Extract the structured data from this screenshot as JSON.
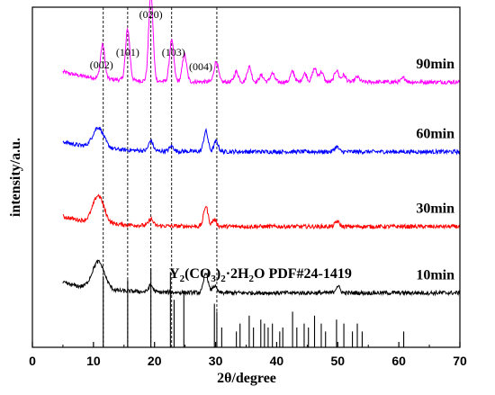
{
  "chart_data": {
    "type": "line",
    "xlabel_prefix": "2",
    "xlabel_symbol": "θ",
    "xlabel_suffix": "/degree",
    "ylabel": "intensity/a.u.",
    "xlim": [
      0,
      70
    ],
    "x_ticks": [
      "0",
      "10",
      "20",
      "30",
      "40",
      "50",
      "60",
      "70"
    ],
    "y_tick_labels_shown": false,
    "grid": false,
    "series": [
      {
        "name": "90min",
        "color": "#ff00ff",
        "baseline": 0.78,
        "peaks": [
          {
            "x": 11.5,
            "h": 0.1
          },
          {
            "x": 15.6,
            "h": 0.15
          },
          {
            "x": 19.4,
            "h": 0.26
          },
          {
            "x": 22.8,
            "h": 0.12
          },
          {
            "x": 24.9,
            "h": 0.08
          },
          {
            "x": 30.1,
            "h": 0.06
          },
          {
            "x": 33.4,
            "h": 0.03
          },
          {
            "x": 35.5,
            "h": 0.045
          },
          {
            "x": 37.5,
            "h": 0.02
          },
          {
            "x": 39.3,
            "h": 0.025
          },
          {
            "x": 42.6,
            "h": 0.03
          },
          {
            "x": 44.6,
            "h": 0.025
          },
          {
            "x": 46.2,
            "h": 0.04
          },
          {
            "x": 47.3,
            "h": 0.03
          },
          {
            "x": 49.8,
            "h": 0.035
          },
          {
            "x": 51.0,
            "h": 0.02
          },
          {
            "x": 53.2,
            "h": 0.015
          },
          {
            "x": 60.8,
            "h": 0.012
          }
        ]
      },
      {
        "name": "60min",
        "color": "#0000ff",
        "baseline": 0.575,
        "peaks": [
          {
            "x": 10.8,
            "h": 0.06,
            "w": 0.9
          },
          {
            "x": 19.4,
            "h": 0.03
          },
          {
            "x": 22.8,
            "h": 0.015
          },
          {
            "x": 28.4,
            "h": 0.06
          },
          {
            "x": 30.1,
            "h": 0.03
          },
          {
            "x": 49.8,
            "h": 0.015
          }
        ]
      },
      {
        "name": "30min",
        "color": "#ff0000",
        "baseline": 0.355,
        "peaks": [
          {
            "x": 10.8,
            "h": 0.08,
            "w": 0.9
          },
          {
            "x": 19.4,
            "h": 0.02
          },
          {
            "x": 28.4,
            "h": 0.06
          },
          {
            "x": 29.8,
            "h": 0.02
          },
          {
            "x": 49.9,
            "h": 0.015
          }
        ]
      },
      {
        "name": "10min",
        "color": "#000000",
        "baseline": 0.16,
        "peaks": [
          {
            "x": 10.8,
            "h": 0.08,
            "w": 1.0
          },
          {
            "x": 19.4,
            "h": 0.02
          },
          {
            "x": 28.4,
            "h": 0.06
          },
          {
            "x": 29.8,
            "h": 0.02
          },
          {
            "x": 50.0,
            "h": 0.02
          }
        ]
      }
    ],
    "reference": {
      "title": "Y2(CO3)2·2H2O PDF#24-1419",
      "lines": [
        {
          "x": 11.6,
          "h": 0.9
        },
        {
          "x": 15.6,
          "h": 0.85
        },
        {
          "x": 19.4,
          "h": 1.0
        },
        {
          "x": 22.6,
          "h": 0.95
        },
        {
          "x": 23.2,
          "h": 0.6
        },
        {
          "x": 24.8,
          "h": 0.7
        },
        {
          "x": 29.8,
          "h": 0.55
        },
        {
          "x": 30.2,
          "h": 0.45
        },
        {
          "x": 31.0,
          "h": 0.25
        },
        {
          "x": 33.4,
          "h": 0.2
        },
        {
          "x": 34.0,
          "h": 0.3
        },
        {
          "x": 35.5,
          "h": 0.4
        },
        {
          "x": 36.2,
          "h": 0.25
        },
        {
          "x": 37.4,
          "h": 0.35
        },
        {
          "x": 38.0,
          "h": 0.3
        },
        {
          "x": 38.6,
          "h": 0.25
        },
        {
          "x": 39.3,
          "h": 0.3
        },
        {
          "x": 40.5,
          "h": 0.2
        },
        {
          "x": 41.0,
          "h": 0.25
        },
        {
          "x": 42.6,
          "h": 0.45
        },
        {
          "x": 43.3,
          "h": 0.25
        },
        {
          "x": 44.5,
          "h": 0.3
        },
        {
          "x": 45.2,
          "h": 0.25
        },
        {
          "x": 46.2,
          "h": 0.4
        },
        {
          "x": 47.3,
          "h": 0.3
        },
        {
          "x": 48.0,
          "h": 0.2
        },
        {
          "x": 49.8,
          "h": 0.35
        },
        {
          "x": 51.0,
          "h": 0.3
        },
        {
          "x": 52.4,
          "h": 0.2
        },
        {
          "x": 53.2,
          "h": 0.3
        },
        {
          "x": 54.0,
          "h": 0.2
        },
        {
          "x": 60.8,
          "h": 0.2
        }
      ]
    },
    "peak_labels": [
      {
        "text": "(002)",
        "x": 11.6
      },
      {
        "text": "(101)",
        "x": 15.6
      },
      {
        "text": "(020)",
        "x": 19.4
      },
      {
        "text": "(103)",
        "x": 22.8
      },
      {
        "text": "(004)",
        "x": 24.9
      }
    ],
    "dashed_guides": [
      11.6,
      15.6,
      19.4,
      22.8,
      30.2
    ]
  }
}
